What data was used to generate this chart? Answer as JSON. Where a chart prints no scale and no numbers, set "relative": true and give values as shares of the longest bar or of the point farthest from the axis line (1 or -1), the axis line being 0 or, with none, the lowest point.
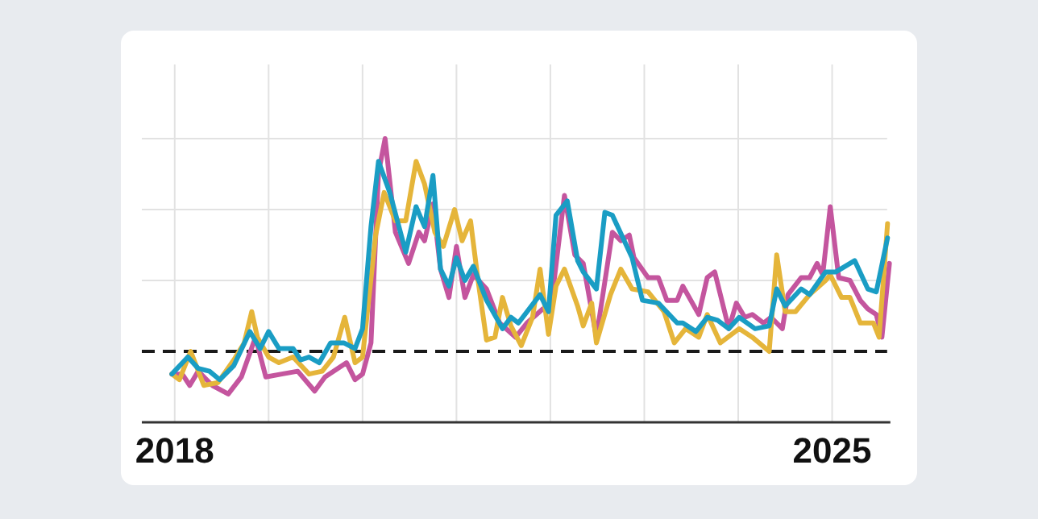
{
  "chart_data": {
    "type": "line",
    "relative": true,
    "grid": true,
    "xlim": [
      2017.65,
      2025.62
    ],
    "xticks": [
      2018,
      {
        "value": 2019,
        "label": null
      },
      {
        "value": 2020,
        "label": null
      },
      {
        "value": 2021,
        "label": null
      },
      {
        "value": 2022,
        "label": null
      },
      {
        "value": 2023,
        "label": null
      },
      {
        "value": 2024,
        "label": null
      },
      2025
    ],
    "ref_lines": [
      {
        "axis": "y",
        "value": 0.25,
        "color": "#1a1a1a",
        "line_style": "dashed"
      }
    ],
    "series": [
      {
        "color": "#c4559e",
        "x": [
          2017.97,
          2018.08,
          2018.16,
          2018.25,
          2018.4,
          2018.57,
          2018.71,
          2018.86,
          2018.97,
          2019.14,
          2019.31,
          2019.49,
          2019.6,
          2019.83,
          2019.92,
          2020.0,
          2020.09,
          2020.17,
          2020.24,
          2020.35,
          2020.49,
          2020.6,
          2020.66,
          2020.75,
          2020.83,
          2020.92,
          2021.0,
          2021.09,
          2021.18,
          2021.32,
          2021.46,
          2021.63,
          2021.75,
          2021.92,
          2022.0,
          2022.15,
          2022.26,
          2022.35,
          2022.49,
          2022.66,
          2022.75,
          2022.84,
          2022.89,
          2023.04,
          2023.15,
          2023.24,
          2023.35,
          2023.41,
          2023.58,
          2023.67,
          2023.75,
          2023.9,
          2023.98,
          2024.07,
          2024.15,
          2024.27,
          2024.35,
          2024.47,
          2024.53,
          2024.67,
          2024.76,
          2024.84,
          2024.9,
          2024.98,
          2025.07,
          2025.19,
          2025.3,
          2025.38,
          2025.47,
          2025.53,
          2025.61
        ],
        "values": [
          0.17,
          0.17,
          0.13,
          0.18,
          0.13,
          0.1,
          0.16,
          0.3,
          0.16,
          0.17,
          0.18,
          0.11,
          0.16,
          0.21,
          0.15,
          0.17,
          0.28,
          0.88,
          1.0,
          0.67,
          0.56,
          0.67,
          0.64,
          0.77,
          0.54,
          0.44,
          0.62,
          0.44,
          0.52,
          0.47,
          0.35,
          0.3,
          0.35,
          0.4,
          0.39,
          0.8,
          0.59,
          0.56,
          0.3,
          0.67,
          0.64,
          0.66,
          0.58,
          0.51,
          0.51,
          0.43,
          0.43,
          0.48,
          0.38,
          0.51,
          0.53,
          0.33,
          0.42,
          0.37,
          0.38,
          0.35,
          0.37,
          0.33,
          0.45,
          0.51,
          0.51,
          0.56,
          0.52,
          0.76,
          0.51,
          0.5,
          0.43,
          0.4,
          0.38,
          0.3,
          0.56
        ]
      },
      {
        "color": "#e5b53a",
        "x": [
          2017.97,
          2018.05,
          2018.17,
          2018.31,
          2018.46,
          2018.63,
          2018.74,
          2018.82,
          2018.88,
          2019.0,
          2019.11,
          2019.26,
          2019.43,
          2019.57,
          2019.69,
          2019.81,
          2019.92,
          2020.0,
          2020.14,
          2020.23,
          2020.35,
          2020.46,
          2020.57,
          2020.66,
          2020.77,
          2020.86,
          2020.98,
          2021.06,
          2021.15,
          2021.23,
          2021.32,
          2021.41,
          2021.49,
          2021.58,
          2021.69,
          2021.81,
          2021.89,
          2021.98,
          2022.06,
          2022.15,
          2022.29,
          2022.35,
          2022.44,
          2022.49,
          2022.64,
          2022.75,
          2022.87,
          2023.04,
          2023.21,
          2023.32,
          2023.44,
          2023.58,
          2023.67,
          2023.81,
          2024.01,
          2024.15,
          2024.33,
          2024.41,
          2024.5,
          2024.61,
          2024.76,
          2024.93,
          2024.98,
          2025.1,
          2025.19,
          2025.3,
          2025.44,
          2025.5,
          2025.59
        ],
        "values": [
          0.17,
          0.15,
          0.25,
          0.13,
          0.14,
          0.22,
          0.28,
          0.39,
          0.3,
          0.23,
          0.21,
          0.23,
          0.17,
          0.18,
          0.23,
          0.37,
          0.21,
          0.23,
          0.66,
          0.81,
          0.71,
          0.71,
          0.92,
          0.84,
          0.67,
          0.62,
          0.75,
          0.64,
          0.71,
          0.5,
          0.29,
          0.3,
          0.44,
          0.34,
          0.27,
          0.37,
          0.54,
          0.31,
          0.48,
          0.54,
          0.41,
          0.34,
          0.42,
          0.28,
          0.45,
          0.54,
          0.47,
          0.46,
          0.39,
          0.28,
          0.33,
          0.3,
          0.38,
          0.28,
          0.33,
          0.3,
          0.25,
          0.59,
          0.39,
          0.39,
          0.45,
          0.5,
          0.52,
          0.44,
          0.44,
          0.35,
          0.35,
          0.3,
          0.7
        ]
      },
      {
        "color": "#1a9dc4",
        "x": [
          2017.97,
          2018.14,
          2018.25,
          2018.37,
          2018.48,
          2018.63,
          2018.8,
          2018.91,
          2019.0,
          2019.11,
          2019.26,
          2019.34,
          2019.43,
          2019.54,
          2019.66,
          2019.8,
          2019.92,
          2020.0,
          2020.09,
          2020.17,
          2020.29,
          2020.46,
          2020.57,
          2020.66,
          2020.75,
          2020.83,
          2020.92,
          2021.0,
          2021.09,
          2021.18,
          2021.32,
          2021.49,
          2021.58,
          2021.66,
          2021.89,
          2021.98,
          2022.06,
          2022.18,
          2022.29,
          2022.35,
          2022.49,
          2022.58,
          2022.66,
          2022.87,
          2022.98,
          2023.15,
          2023.35,
          2023.41,
          2023.55,
          2023.67,
          2023.78,
          2023.9,
          2024.01,
          2024.18,
          2024.33,
          2024.41,
          2024.5,
          2024.67,
          2024.76,
          2024.93,
          2025.04,
          2025.24,
          2025.38,
          2025.47,
          2025.59
        ],
        "values": [
          0.17,
          0.23,
          0.19,
          0.18,
          0.15,
          0.2,
          0.32,
          0.26,
          0.32,
          0.26,
          0.26,
          0.22,
          0.23,
          0.21,
          0.28,
          0.28,
          0.26,
          0.33,
          0.69,
          0.92,
          0.81,
          0.6,
          0.76,
          0.69,
          0.87,
          0.54,
          0.48,
          0.58,
          0.5,
          0.55,
          0.43,
          0.33,
          0.37,
          0.35,
          0.45,
          0.39,
          0.73,
          0.78,
          0.57,
          0.53,
          0.47,
          0.74,
          0.73,
          0.58,
          0.43,
          0.42,
          0.35,
          0.35,
          0.32,
          0.37,
          0.36,
          0.33,
          0.37,
          0.33,
          0.34,
          0.47,
          0.41,
          0.47,
          0.45,
          0.53,
          0.53,
          0.57,
          0.47,
          0.46,
          0.65
        ]
      }
    ]
  }
}
